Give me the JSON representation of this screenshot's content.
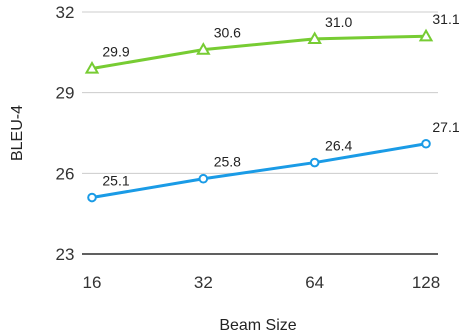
{
  "chart_data": {
    "type": "line",
    "xlabel": "Beam Size",
    "ylabel": "BLEU-4",
    "categories": [
      "16",
      "32",
      "64",
      "128"
    ],
    "yticks": [
      "23",
      "26",
      "29",
      "32"
    ],
    "ylim": [
      23,
      32
    ],
    "grid": "horizontal",
    "series": [
      {
        "values": [
          29.9,
          30.6,
          31.0,
          31.1
        ],
        "labels": [
          "29.9",
          "30.6",
          "31.0",
          "31.1"
        ],
        "color": "#77cc33",
        "marker": "triangle-open"
      },
      {
        "values": [
          25.1,
          25.8,
          26.4,
          27.1
        ],
        "labels": [
          "25.1",
          "25.8",
          "26.4",
          "27.1"
        ],
        "color": "#1a9be6",
        "marker": "circle-open"
      }
    ]
  }
}
